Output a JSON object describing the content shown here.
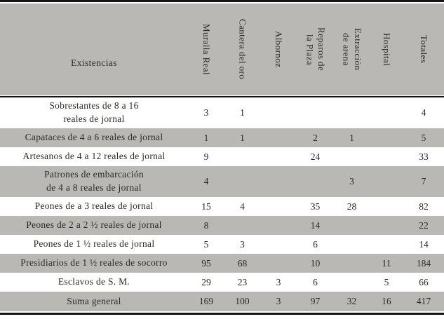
{
  "table": {
    "corner_label": "Existencias",
    "columns": [
      "Muralla Real",
      "Cantera del oro",
      "Albornoz",
      "Reparos de\nla Plaza",
      "Extracción\nde arena",
      "Hospital",
      "Totales"
    ],
    "rows": [
      {
        "label": "Sobrestantes de 8 a 16\nreales de jornal",
        "values": [
          "3",
          "1",
          "",
          "",
          "",
          "",
          "4"
        ]
      },
      {
        "label": "Capataces de 4 a 6 reales de jornal",
        "values": [
          "1",
          "1",
          "",
          "2",
          "1",
          "",
          "5"
        ]
      },
      {
        "label": "Artesanos de 4 a 12 reales de jornal",
        "values": [
          "9",
          "",
          "",
          "24",
          "",
          "",
          "33"
        ]
      },
      {
        "label": "Patrones de embarcación\nde 4 a 8 reales de jornal",
        "values": [
          "4",
          "",
          "",
          "",
          "3",
          "",
          "7"
        ]
      },
      {
        "label": "Peones de a 3 reales de jornal",
        "values": [
          "15",
          "4",
          "",
          "35",
          "28",
          "",
          "82"
        ]
      },
      {
        "label": "Peones de 2 a 2 ½ reales de jornal",
        "values": [
          "8",
          "",
          "",
          "14",
          "",
          "",
          "22"
        ]
      },
      {
        "label": "Peones de 1 ½ reales de jornal",
        "values": [
          "5",
          "3",
          "",
          "6",
          "",
          "",
          "14"
        ]
      },
      {
        "label": "Presidiarios de 1 ½ reales de socorro",
        "values": [
          "95",
          "68",
          "",
          "10",
          "",
          "11",
          "184"
        ]
      },
      {
        "label": "Esclavos de S. M.",
        "values": [
          "29",
          "23",
          "3",
          "6",
          "",
          "5",
          "66"
        ]
      },
      {
        "label": "Suma general",
        "values": [
          "169",
          "100",
          "3",
          "97",
          "32",
          "16",
          "417"
        ]
      }
    ],
    "colors": {
      "band_gray": "#b9b8b4",
      "rule_black": "#141414",
      "text": "#2a2a26"
    }
  }
}
